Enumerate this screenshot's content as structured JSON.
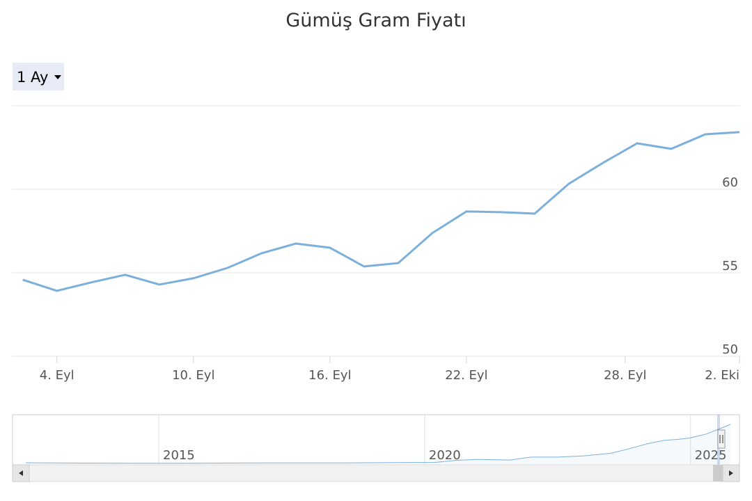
{
  "range_selector": "1 Ay",
  "chart_data": [
    {
      "type": "line",
      "title": "Gümüş Gram Fiyatı",
      "color": "#7cb0dc",
      "x": [
        0,
        1,
        2,
        3,
        4,
        5,
        6,
        7,
        8,
        9,
        10,
        11,
        12,
        13,
        14,
        15,
        16,
        17,
        18,
        19,
        20,
        21
      ],
      "values": [
        54.58,
        53.92,
        54.42,
        54.88,
        54.29,
        54.67,
        55.29,
        56.17,
        56.75,
        56.5,
        55.38,
        55.58,
        57.38,
        58.67,
        58.63,
        58.54,
        60.33,
        61.58,
        62.75,
        62.42,
        63.29,
        63.42
      ],
      "xlim": [
        -0.3,
        21
      ],
      "xticks": [
        {
          "value": 1,
          "label": "4. Eyl"
        },
        {
          "value": 5,
          "label": "10. Eyl"
        },
        {
          "value": 9,
          "label": "16. Eyl"
        },
        {
          "value": 13,
          "label": "22. Eyl"
        },
        {
          "value": 17.65,
          "label": "28. Eyl"
        },
        {
          "value": 21,
          "label": "2. Eki"
        }
      ],
      "ylim": [
        50,
        65
      ],
      "yticks": [
        50,
        55,
        60
      ],
      "grid": true
    },
    {
      "type": "area",
      "color": "#7cb0dc",
      "x": [
        2012.5,
        2013.5,
        2014.5,
        2015.5,
        2016.5,
        2017.5,
        2018.5,
        2019.5,
        2020.2,
        2020.6,
        2021.0,
        2021.6,
        2022.0,
        2022.5,
        2023.0,
        2023.5,
        2023.8,
        2024.2,
        2024.5,
        2024.8,
        2025.0,
        2025.3,
        2025.6,
        2025.75
      ],
      "values": [
        3.3,
        2.7,
        2.5,
        2.5,
        2.8,
        3,
        3,
        3.5,
        3.8,
        7,
        8.5,
        7.5,
        12,
        12,
        14,
        18,
        24,
        33,
        38,
        40,
        42,
        48,
        58,
        63
      ],
      "xlim": [
        2012.25,
        2025.92
      ],
      "xticks": [
        2015,
        2020,
        2025
      ],
      "ylim": [
        0,
        78
      ]
    }
  ]
}
